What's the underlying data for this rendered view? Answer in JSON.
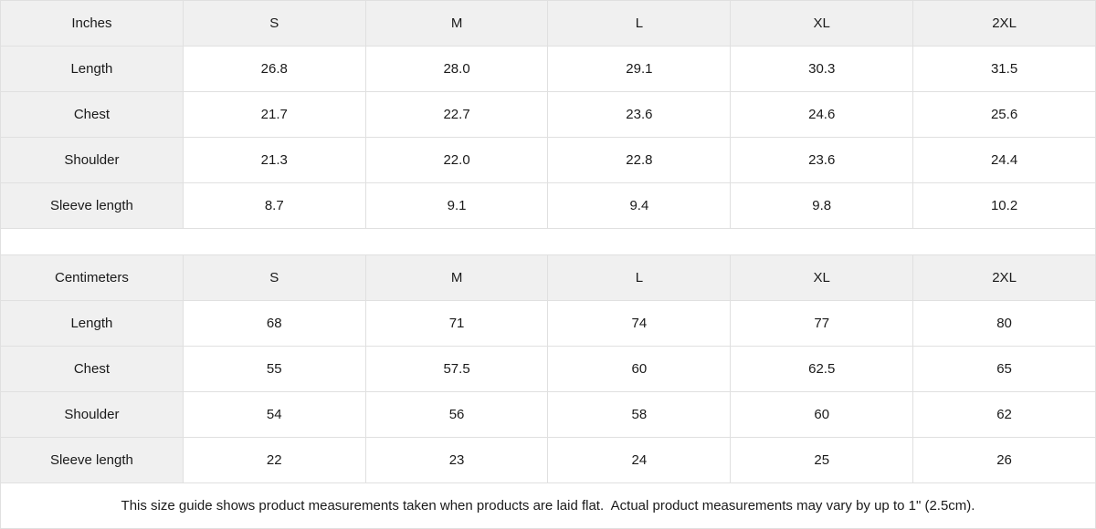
{
  "page": {
    "note": "This size guide shows product measurements taken when products are laid flat.  Actual product measurements may vary by up to 1\" (2.5cm)."
  },
  "colors": {
    "header_background": "#f0f0f0",
    "cell_background": "#ffffff",
    "border": "#e0e0e0",
    "text": "#1a1a1a"
  },
  "tables": [
    {
      "unit_label": "Inches",
      "size_headers": [
        "S",
        "M",
        "L",
        "XL",
        "2XL"
      ],
      "rows": [
        {
          "label": "Length",
          "values": [
            "26.8",
            "28.0",
            "29.1",
            "30.3",
            "31.5"
          ]
        },
        {
          "label": "Chest",
          "values": [
            "21.7",
            "22.7",
            "23.6",
            "24.6",
            "25.6"
          ]
        },
        {
          "label": "Shoulder",
          "values": [
            "21.3",
            "22.0",
            "22.8",
            "23.6",
            "24.4"
          ]
        },
        {
          "label": "Sleeve length",
          "values": [
            "8.7",
            "9.1",
            "9.4",
            "9.8",
            "10.2"
          ]
        }
      ]
    },
    {
      "unit_label": "Centimeters",
      "size_headers": [
        "S",
        "M",
        "L",
        "XL",
        "2XL"
      ],
      "rows": [
        {
          "label": "Length",
          "values": [
            "68",
            "71",
            "74",
            "77",
            "80"
          ]
        },
        {
          "label": "Chest",
          "values": [
            "55",
            "57.5",
            "60",
            "62.5",
            "65"
          ]
        },
        {
          "label": "Shoulder",
          "values": [
            "54",
            "56",
            "58",
            "60",
            "62"
          ]
        },
        {
          "label": "Sleeve length",
          "values": [
            "22",
            "23",
            "24",
            "25",
            "26"
          ]
        }
      ]
    }
  ]
}
